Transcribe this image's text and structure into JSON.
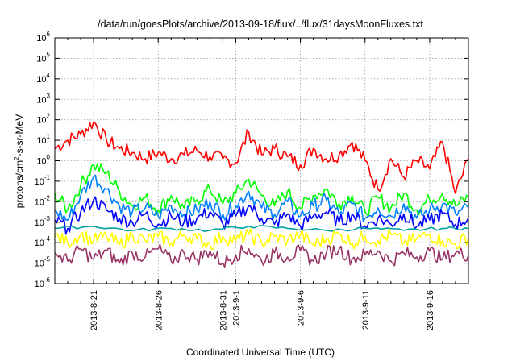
{
  "chart_data": {
    "type": "line",
    "title": "/data/run/goesPlots/archive/2013-09-18/flux/../flux/31daysMoonFluxes.txt",
    "xlabel": "Coordinated Universal Time (UTC)",
    "ylabel_parts": [
      "protons/cm",
      "2",
      "-s-sr-MeV"
    ],
    "yscale": "log",
    "ylim": [
      "1e-6",
      "1e6"
    ],
    "xlim": [
      "2013-08-18",
      "2013-09-19"
    ],
    "grid": true,
    "legend": "none",
    "y_ticks": [
      {
        "base": "10",
        "exp": "-6",
        "value": -6
      },
      {
        "base": "10",
        "exp": "-5",
        "value": -5
      },
      {
        "base": "10",
        "exp": "-4",
        "value": -4
      },
      {
        "base": "10",
        "exp": "-3",
        "value": -3
      },
      {
        "base": "10",
        "exp": "-2",
        "value": -2
      },
      {
        "base": "10",
        "exp": "-1",
        "value": -1
      },
      {
        "base": "10",
        "exp": "0",
        "value": 0
      },
      {
        "base": "10",
        "exp": "1",
        "value": 1
      },
      {
        "base": "10",
        "exp": "2",
        "value": 2
      },
      {
        "base": "10",
        "exp": "3",
        "value": 3
      },
      {
        "base": "10",
        "exp": "4",
        "value": 4
      },
      {
        "base": "10",
        "exp": "5",
        "value": 5
      },
      {
        "base": "10",
        "exp": "6",
        "value": 6
      }
    ],
    "x_ticks": [
      {
        "label": "2013-8-21",
        "date": "2013-08-21"
      },
      {
        "label": "2013-8-26",
        "date": "2013-08-26"
      },
      {
        "label": "2013-8-31",
        "date": "2013-08-31"
      },
      {
        "label": "2013-9-1",
        "date": "2013-09-01"
      },
      {
        "label": "2013-9-6",
        "date": "2013-09-06"
      },
      {
        "label": "2013-9-11",
        "date": "2013-09-11"
      },
      {
        "label": "2013-9-16",
        "date": "2013-09-16"
      }
    ],
    "series": [
      {
        "color": "#ff0000",
        "x": [
          "2013-08-18",
          "2013-08-19",
          "2013-08-20",
          "2013-08-21",
          "2013-08-22",
          "2013-08-23",
          "2013-08-24",
          "2013-08-25",
          "2013-08-26",
          "2013-08-27",
          "2013-08-28",
          "2013-08-29",
          "2013-08-30",
          "2013-08-31",
          "2013-09-01",
          "2013-09-02",
          "2013-09-03",
          "2013-09-04",
          "2013-09-05",
          "2013-09-06",
          "2013-09-07",
          "2013-09-08",
          "2013-09-09",
          "2013-09-10",
          "2013-09-11",
          "2013-09-12",
          "2013-09-13",
          "2013-09-14",
          "2013-09-15",
          "2013-09-16",
          "2013-09-17",
          "2013-09-18",
          "2013-09-19"
        ],
        "log10_values": [
          0.6,
          1.0,
          1.3,
          1.9,
          1.0,
          0.6,
          0.4,
          0.1,
          0.4,
          0.1,
          0.3,
          0.5,
          0.2,
          0.1,
          -0.1,
          1.4,
          0.3,
          0.6,
          0.2,
          -0.2,
          0.6,
          0.1,
          0.3,
          0.9,
          0.0,
          -1.4,
          0.1,
          -0.8,
          0.0,
          -0.4,
          0.9,
          -1.6,
          0.1
        ]
      },
      {
        "color": "#00ff00",
        "x": [
          "2013-08-18",
          "2013-08-19",
          "2013-08-20",
          "2013-08-21",
          "2013-08-22",
          "2013-08-23",
          "2013-08-24",
          "2013-08-25",
          "2013-08-26",
          "2013-08-27",
          "2013-08-28",
          "2013-08-29",
          "2013-08-30",
          "2013-08-31",
          "2013-09-01",
          "2013-09-02",
          "2013-09-03",
          "2013-09-04",
          "2013-09-05",
          "2013-09-06",
          "2013-09-07",
          "2013-09-08",
          "2013-09-09",
          "2013-09-10",
          "2013-09-11",
          "2013-09-12",
          "2013-09-13",
          "2013-09-14",
          "2013-09-15",
          "2013-09-16",
          "2013-09-17",
          "2013-09-18",
          "2013-09-19"
        ],
        "log10_values": [
          -1.6,
          -2.4,
          -1.2,
          -0.2,
          -0.6,
          -1.5,
          -2.2,
          -1.8,
          -2.4,
          -1.7,
          -2.3,
          -1.9,
          -1.4,
          -2.1,
          -1.6,
          -0.9,
          -1.7,
          -2.2,
          -1.5,
          -2.3,
          -1.7,
          -1.4,
          -2.1,
          -1.7,
          -2.5,
          -1.8,
          -2.3,
          -1.6,
          -2.4,
          -1.9,
          -1.6,
          -2.2,
          -1.8
        ]
      },
      {
        "color": "#0080ff",
        "x": [
          "2013-08-18",
          "2013-08-19",
          "2013-08-20",
          "2013-08-21",
          "2013-08-22",
          "2013-08-23",
          "2013-08-24",
          "2013-08-25",
          "2013-08-26",
          "2013-08-27",
          "2013-08-28",
          "2013-08-29",
          "2013-08-30",
          "2013-08-31",
          "2013-09-01",
          "2013-09-02",
          "2013-09-03",
          "2013-09-04",
          "2013-09-05",
          "2013-09-06",
          "2013-09-07",
          "2013-09-08",
          "2013-09-09",
          "2013-09-10",
          "2013-09-11",
          "2013-09-12",
          "2013-09-13",
          "2013-09-14",
          "2013-09-15",
          "2013-09-16",
          "2013-09-17",
          "2013-09-18",
          "2013-09-19"
        ],
        "log10_values": [
          -2.4,
          -2.9,
          -1.7,
          -0.8,
          -1.4,
          -2.2,
          -2.5,
          -2.3,
          -2.7,
          -2.2,
          -2.6,
          -2.4,
          -2.0,
          -2.6,
          -2.2,
          -1.5,
          -2.3,
          -2.6,
          -2.0,
          -2.7,
          -2.2,
          -1.9,
          -2.6,
          -2.1,
          -2.8,
          -2.3,
          -2.7,
          -2.1,
          -2.8,
          -2.4,
          -2.1,
          -2.6,
          -2.3
        ]
      },
      {
        "color": "#0000ff",
        "x": [
          "2013-08-18",
          "2013-08-19",
          "2013-08-20",
          "2013-08-21",
          "2013-08-22",
          "2013-08-23",
          "2013-08-24",
          "2013-08-25",
          "2013-08-26",
          "2013-08-27",
          "2013-08-28",
          "2013-08-29",
          "2013-08-30",
          "2013-08-31",
          "2013-09-01",
          "2013-09-02",
          "2013-09-03",
          "2013-09-04",
          "2013-09-05",
          "2013-09-06",
          "2013-09-07",
          "2013-09-08",
          "2013-09-09",
          "2013-09-10",
          "2013-09-11",
          "2013-09-12",
          "2013-09-13",
          "2013-09-14",
          "2013-09-15",
          "2013-09-16",
          "2013-09-17",
          "2013-09-18",
          "2013-09-19"
        ],
        "log10_values": [
          -2.9,
          -3.3,
          -2.5,
          -1.9,
          -2.4,
          -2.8,
          -3.0,
          -2.6,
          -3.1,
          -2.7,
          -3.0,
          -2.8,
          -2.5,
          -3.1,
          -2.7,
          -2.2,
          -2.8,
          -3.1,
          -2.6,
          -3.2,
          -2.7,
          -2.5,
          -3.0,
          -2.6,
          -3.2,
          -2.8,
          -3.1,
          -2.6,
          -3.2,
          -2.9,
          -2.6,
          -3.1,
          -2.8
        ]
      },
      {
        "color": "#00a0a0",
        "x": [
          "2013-08-18",
          "2013-08-21",
          "2013-08-24",
          "2013-08-27",
          "2013-08-30",
          "2013-09-02",
          "2013-09-05",
          "2013-09-08",
          "2013-09-11",
          "2013-09-14",
          "2013-09-17",
          "2013-09-19"
        ],
        "log10_values": [
          -3.3,
          -3.2,
          -3.4,
          -3.3,
          -3.4,
          -3.2,
          -3.3,
          -3.4,
          -3.3,
          -3.4,
          -3.3,
          -3.3
        ]
      },
      {
        "color": "#ffff00",
        "x": [
          "2013-08-18",
          "2013-08-19",
          "2013-08-20",
          "2013-08-21",
          "2013-08-22",
          "2013-08-23",
          "2013-08-24",
          "2013-08-25",
          "2013-08-26",
          "2013-08-27",
          "2013-08-28",
          "2013-08-29",
          "2013-08-30",
          "2013-08-31",
          "2013-09-01",
          "2013-09-02",
          "2013-09-03",
          "2013-09-04",
          "2013-09-05",
          "2013-09-06",
          "2013-09-07",
          "2013-09-08",
          "2013-09-09",
          "2013-09-10",
          "2013-09-11",
          "2013-09-12",
          "2013-09-13",
          "2013-09-14",
          "2013-09-15",
          "2013-09-16",
          "2013-09-17",
          "2013-09-18",
          "2013-09-19"
        ],
        "log10_values": [
          -3.7,
          -4.0,
          -3.6,
          -3.9,
          -3.7,
          -4.1,
          -3.6,
          -3.9,
          -3.7,
          -4.0,
          -3.6,
          -3.8,
          -4.1,
          -3.7,
          -3.9,
          -3.6,
          -4.0,
          -3.7,
          -3.9,
          -3.6,
          -4.1,
          -3.8,
          -3.6,
          -4.0,
          -3.7,
          -3.9,
          -3.6,
          -4.0,
          -3.8,
          -3.6,
          -3.9,
          -4.1,
          -3.7
        ]
      },
      {
        "color": "#993366",
        "x": [
          "2013-08-18",
          "2013-08-19",
          "2013-08-20",
          "2013-08-21",
          "2013-08-22",
          "2013-08-23",
          "2013-08-24",
          "2013-08-25",
          "2013-08-26",
          "2013-08-27",
          "2013-08-28",
          "2013-08-29",
          "2013-08-30",
          "2013-08-31",
          "2013-09-01",
          "2013-09-02",
          "2013-09-03",
          "2013-09-04",
          "2013-09-05",
          "2013-09-06",
          "2013-09-07",
          "2013-09-08",
          "2013-09-09",
          "2013-09-10",
          "2013-09-11",
          "2013-09-12",
          "2013-09-13",
          "2013-09-14",
          "2013-09-15",
          "2013-09-16",
          "2013-09-17",
          "2013-09-18",
          "2013-09-19"
        ],
        "log10_values": [
          -4.5,
          -4.9,
          -4.3,
          -4.8,
          -4.4,
          -5.0,
          -4.5,
          -4.7,
          -4.3,
          -4.9,
          -4.5,
          -4.8,
          -4.4,
          -5.0,
          -4.6,
          -4.3,
          -4.9,
          -4.5,
          -4.7,
          -4.4,
          -4.9,
          -4.5,
          -4.3,
          -4.8,
          -4.6,
          -4.4,
          -4.9,
          -4.5,
          -4.7,
          -4.4,
          -4.8,
          -4.5,
          -4.6
        ]
      }
    ]
  }
}
